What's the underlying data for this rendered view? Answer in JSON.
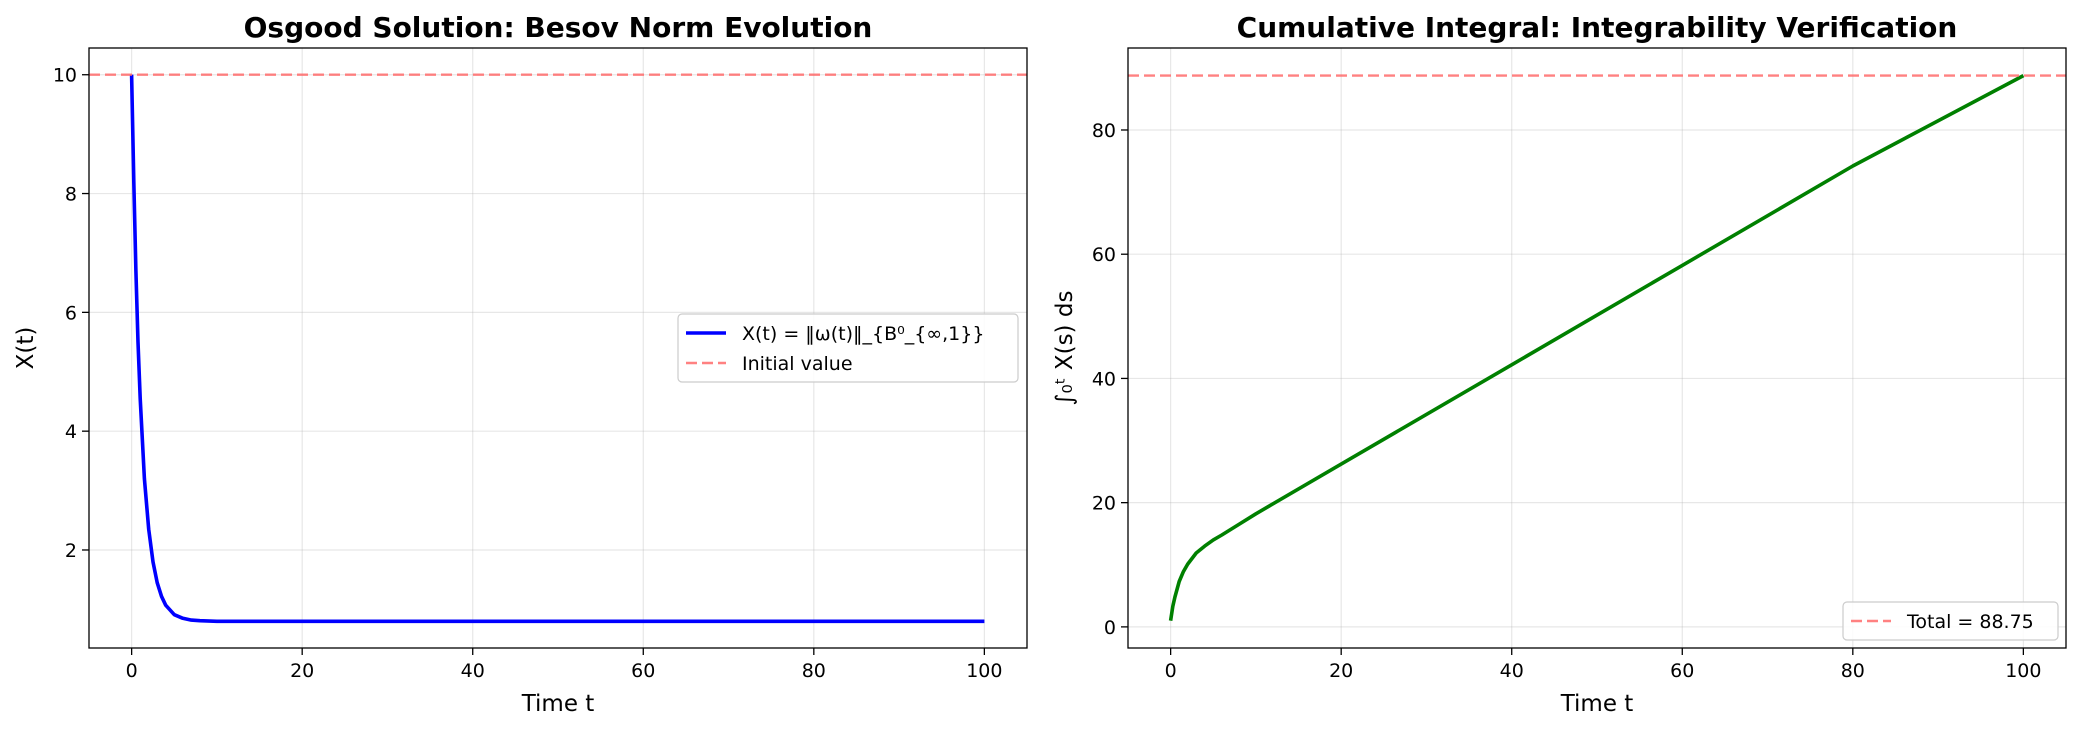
{
  "chart_data": [
    {
      "type": "line",
      "title": "Osgood Solution: Besov Norm Evolution",
      "xlabel": "Time t",
      "ylabel": "X(t)",
      "xlim": [
        -5,
        105
      ],
      "ylim": [
        0.35,
        10.45
      ],
      "xticks": [
        0,
        20,
        40,
        60,
        80,
        100
      ],
      "yticks": [
        2,
        4,
        6,
        8,
        10
      ],
      "grid": true,
      "legend_position": "center-right",
      "series": [
        {
          "name": "X(t) = ‖ω(t)‖_{B⁰_{∞,1}}",
          "color": "#0000ff",
          "style": "solid",
          "x": [
            0,
            0.25,
            0.5,
            0.75,
            1,
            1.5,
            2,
            2.5,
            3,
            3.5,
            4,
            5,
            6,
            7,
            8,
            10,
            15,
            20,
            40,
            60,
            80,
            100
          ],
          "y": [
            10,
            8.2,
            6.7,
            5.5,
            4.55,
            3.2,
            2.35,
            1.8,
            1.45,
            1.22,
            1.07,
            0.91,
            0.85,
            0.82,
            0.81,
            0.8,
            0.8,
            0.8,
            0.8,
            0.8,
            0.8,
            0.8
          ]
        },
        {
          "name": "Initial value",
          "color": "#ff6b6b",
          "style": "dashed",
          "x": [
            -5,
            105
          ],
          "y": [
            10,
            10
          ]
        }
      ]
    },
    {
      "type": "line",
      "title": "Cumulative Integral: Integrability Verification",
      "xlabel": "Time t",
      "ylabel": "∫₀ᵗ X(s) ds",
      "xlim": [
        -5,
        105
      ],
      "ylim": [
        -3.4,
        93.2
      ],
      "xticks": [
        0,
        20,
        40,
        60,
        80,
        100
      ],
      "yticks": [
        0,
        20,
        40,
        60,
        80
      ],
      "grid": true,
      "legend_position": "lower-right",
      "series": [
        {
          "name": "",
          "color": "#008000",
          "style": "solid",
          "x": [
            0,
            0.25,
            0.5,
            1,
            1.5,
            2,
            3,
            4,
            5,
            6,
            8,
            10,
            20,
            40,
            60,
            80,
            100
          ],
          "y": [
            1,
            3.3,
            4.8,
            7.3,
            8.9,
            10.1,
            11.9,
            13.0,
            14.0,
            14.8,
            16.5,
            18.2,
            26.2,
            42.2,
            58.2,
            74.2,
            88.75
          ]
        },
        {
          "name": "Total = 88.75",
          "color": "#ff6b6b",
          "style": "dashed",
          "x": [
            -5,
            105
          ],
          "y": [
            88.75,
            88.75
          ]
        }
      ]
    }
  ]
}
